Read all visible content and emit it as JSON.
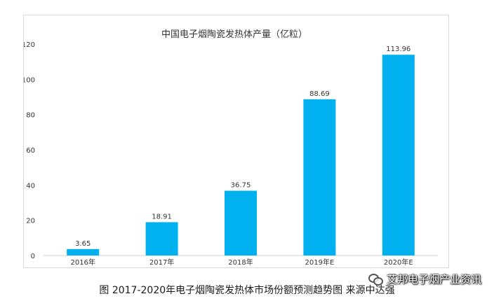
{
  "chart_data": {
    "type": "bar",
    "title": "中国电子烟陶瓷发热体产量（亿粒）",
    "categories": [
      "2016年",
      "2017年",
      "2018年",
      "2019年E",
      "2020年E"
    ],
    "values": [
      3.65,
      18.91,
      36.75,
      88.69,
      113.96
    ],
    "data_labels": [
      "3.65",
      "18.91",
      "36.75",
      "88.69",
      "113.96"
    ],
    "ylim": [
      0,
      120
    ],
    "yticks": [
      "0",
      "20",
      "40",
      "60",
      "80",
      "100",
      "120"
    ],
    "ytick_values": [
      0,
      20,
      40,
      60,
      80,
      100,
      120
    ],
    "grid": false,
    "bar_color": "#00b0ef"
  },
  "caption": "图  2017-2020年电子烟陶瓷发热体市场份额预测趋势图    来源中达强",
  "watermark": {
    "text": "艾邦电子烟产业资讯",
    "icon": "wechat-icon"
  }
}
